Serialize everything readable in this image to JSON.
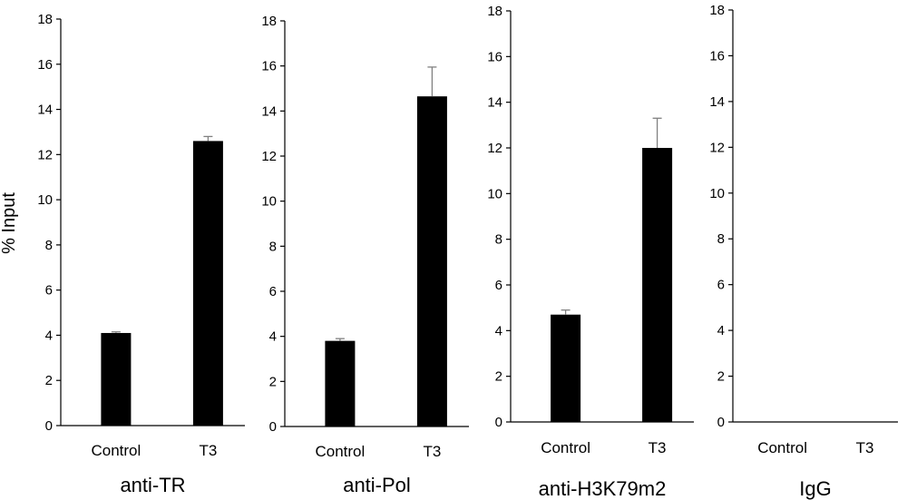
{
  "colors": {
    "bar": "#000000",
    "axis": "#000000",
    "error_bar": "#808080",
    "background": "#ffffff"
  },
  "y_axis_title": "% Input",
  "chart_data": [
    {
      "type": "bar",
      "title": "anti-TR",
      "categories": [
        "Control",
        "T3"
      ],
      "values": [
        4.1,
        12.6
      ],
      "errors": [
        0.05,
        0.2
      ],
      "ylabel": "% Input",
      "xlabel": "",
      "ylim": [
        0,
        18
      ],
      "yticks": [
        0,
        2,
        4,
        6,
        8,
        10,
        12,
        14,
        16,
        18
      ],
      "grid": false
    },
    {
      "type": "bar",
      "title": "anti-Pol",
      "categories": [
        "Control",
        "T3"
      ],
      "values": [
        3.8,
        14.65
      ],
      "errors": [
        0.1,
        1.3
      ],
      "ylabel": "",
      "xlabel": "",
      "ylim": [
        0,
        18
      ],
      "yticks": [
        0,
        2,
        4,
        6,
        8,
        10,
        12,
        14,
        16,
        18
      ],
      "grid": false
    },
    {
      "type": "bar",
      "title": "anti-H3K79m2",
      "categories": [
        "Control",
        "T3"
      ],
      "values": [
        4.7,
        12.0
      ],
      "errors": [
        0.2,
        1.3
      ],
      "ylabel": "",
      "xlabel": "",
      "ylim": [
        0,
        18
      ],
      "yticks": [
        0,
        2,
        4,
        6,
        8,
        10,
        12,
        14,
        16,
        18
      ],
      "grid": false
    },
    {
      "type": "bar",
      "title": "IgG",
      "categories": [
        "Control",
        "T3"
      ],
      "values": [
        0,
        0
      ],
      "errors": [
        0,
        0
      ],
      "ylabel": "",
      "xlabel": "",
      "ylim": [
        0,
        18
      ],
      "yticks": [
        0,
        2,
        4,
        6,
        8,
        10,
        12,
        14,
        16,
        18
      ],
      "grid": false
    }
  ]
}
